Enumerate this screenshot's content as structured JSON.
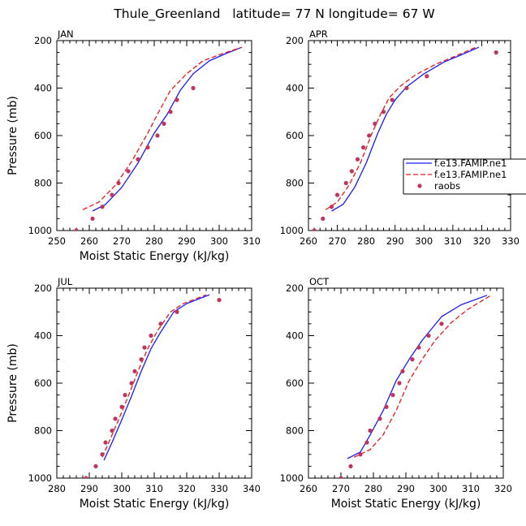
{
  "figure": {
    "title": "Thule_Greenland   latitude= 77 N longitude= 67 W"
  },
  "legend": {
    "placement": "right, between APR panel edge and figure edge",
    "entries": [
      {
        "label": "f.e13.FAMIP.ne1",
        "style": "solid",
        "color": "#1a1aff"
      },
      {
        "label": "f.e13.FAMIP.ne1",
        "style": "dashed",
        "color": "#e8191e"
      },
      {
        "label": "raobs",
        "style": "dots",
        "color": "#c0365a"
      }
    ]
  },
  "chart_data": [
    {
      "type": "line",
      "panel_label": "JAN",
      "xlabel": "Moist Static Energy (kJ/kg)",
      "ylabel": "Pressure (mb)",
      "xlim": [
        250,
        310
      ],
      "ylim": [
        200,
        1000
      ],
      "y_reversed": true,
      "xticks": [
        250,
        260,
        270,
        280,
        290,
        300,
        310
      ],
      "yticks": [
        200,
        400,
        600,
        800,
        1000
      ],
      "series": [
        {
          "style": "solid",
          "color": "#1a1aff",
          "points": [
            [
              261,
              918
            ],
            [
              265,
              890
            ],
            [
              270,
              818
            ],
            [
              275,
              716
            ],
            [
              280,
              590
            ],
            [
              284,
              510
            ],
            [
              288,
              410
            ],
            [
              292,
              340
            ],
            [
              297,
              285
            ],
            [
              302,
              255
            ],
            [
              307,
              228
            ]
          ]
        },
        {
          "style": "dashed",
          "color": "#e8191e",
          "points": [
            [
              258,
              912
            ],
            [
              263,
              880
            ],
            [
              268,
              810
            ],
            [
              273,
              710
            ],
            [
              278,
              590
            ],
            [
              281,
              510
            ],
            [
              285,
              410
            ],
            [
              290,
              340
            ],
            [
              295,
              285
            ],
            [
              301,
              255
            ],
            [
              307,
              228
            ]
          ]
        },
        {
          "style": "dots",
          "color": "#c0365a",
          "points": [
            [
              256,
              1000
            ],
            [
              261,
              950
            ],
            [
              264,
              900
            ],
            [
              267,
              850
            ],
            [
              269,
              800
            ],
            [
              272,
              750
            ],
            [
              275,
              700
            ],
            [
              278,
              650
            ],
            [
              281,
              600
            ],
            [
              283,
              550
            ],
            [
              285,
              500
            ],
            [
              287,
              450
            ],
            [
              292,
              400
            ]
          ]
        }
      ]
    },
    {
      "type": "line",
      "panel_label": "APR",
      "xlabel": "",
      "ylabel": "",
      "xlim": [
        260,
        330
      ],
      "ylim": [
        200,
        1000
      ],
      "y_reversed": true,
      "xticks": [
        260,
        270,
        280,
        290,
        300,
        310,
        320,
        330
      ],
      "yticks": [
        200,
        400,
        600,
        800,
        1000
      ],
      "series": [
        {
          "style": "solid",
          "color": "#1a1aff",
          "points": [
            [
              268,
              918
            ],
            [
              272,
              890
            ],
            [
              276,
              818
            ],
            [
              280,
              716
            ],
            [
              284,
              590
            ],
            [
              287,
              510
            ],
            [
              290,
              450
            ],
            [
              294,
              395
            ],
            [
              300,
              340
            ],
            [
              307,
              290
            ],
            [
              313,
              260
            ],
            [
              319,
              228
            ]
          ]
        },
        {
          "style": "dashed",
          "color": "#e8191e",
          "points": [
            [
              266,
              912
            ],
            [
              270,
              880
            ],
            [
              274,
              810
            ],
            [
              278,
              716
            ],
            [
              282,
              590
            ],
            [
              285,
              510
            ],
            [
              288,
              440
            ],
            [
              292,
              390
            ],
            [
              297,
              345
            ],
            [
              304,
              300
            ],
            [
              311,
              265
            ],
            [
              318,
              228
            ]
          ]
        },
        {
          "style": "dots",
          "color": "#c0365a",
          "points": [
            [
              262,
              1000
            ],
            [
              265,
              950
            ],
            [
              268,
              900
            ],
            [
              270,
              850
            ],
            [
              273,
              800
            ],
            [
              275,
              750
            ],
            [
              277,
              700
            ],
            [
              279,
              650
            ],
            [
              281,
              600
            ],
            [
              283,
              550
            ],
            [
              286,
              500
            ],
            [
              289,
              450
            ],
            [
              294,
              400
            ],
            [
              301,
              350
            ],
            [
              325,
              250
            ]
          ]
        }
      ]
    },
    {
      "type": "line",
      "panel_label": "JUL",
      "xlabel": "Moist Static Energy (kJ/kg)",
      "ylabel": "Pressure (mb)",
      "xlim": [
        280,
        340
      ],
      "ylim": [
        200,
        1000
      ],
      "y_reversed": true,
      "xticks": [
        280,
        290,
        300,
        310,
        320,
        330,
        340
      ],
      "yticks": [
        200,
        400,
        600,
        800,
        1000
      ],
      "series": [
        {
          "style": "solid",
          "color": "#1a1aff",
          "points": [
            [
              294.5,
              925
            ],
            [
              297,
              850
            ],
            [
              300,
              755
            ],
            [
              303,
              655
            ],
            [
              306,
              550
            ],
            [
              309,
              455
            ],
            [
              312,
              385
            ],
            [
              316,
              300
            ],
            [
              320,
              265
            ],
            [
              327,
              228
            ]
          ]
        },
        {
          "style": "dashed",
          "color": "#e8191e",
          "points": [
            [
              294,
              912
            ],
            [
              296,
              850
            ],
            [
              299,
              755
            ],
            [
              302,
              655
            ],
            [
              305,
              550
            ],
            [
              308,
              455
            ],
            [
              311,
              380
            ],
            [
              315,
              300
            ],
            [
              319,
              265
            ],
            [
              326,
              228
            ]
          ]
        },
        {
          "style": "dots",
          "color": "#c0365a",
          "points": [
            [
              289,
              1000
            ],
            [
              292,
              950
            ],
            [
              294,
              900
            ],
            [
              295,
              850
            ],
            [
              297,
              800
            ],
            [
              298,
              750
            ],
            [
              300,
              700
            ],
            [
              301,
              650
            ],
            [
              303,
              600
            ],
            [
              304,
              550
            ],
            [
              306,
              500
            ],
            [
              307,
              450
            ],
            [
              309,
              400
            ],
            [
              312,
              350
            ],
            [
              317,
              300
            ],
            [
              330,
              250
            ]
          ]
        }
      ]
    },
    {
      "type": "line",
      "panel_label": "OCT",
      "xlabel": "Moist Static Energy (kJ/kg)",
      "ylabel": "",
      "xlim": [
        260,
        320
      ],
      "ylim": [
        200,
        1000
      ],
      "y_reversed": true,
      "xticks": [
        260,
        270,
        280,
        290,
        300,
        310,
        320
      ],
      "yticks": [
        200,
        400,
        600,
        800,
        1000
      ],
      "series": [
        {
          "style": "solid",
          "color": "#1a1aff",
          "points": [
            [
              272,
              918
            ],
            [
              276,
              890
            ],
            [
              279,
              818
            ],
            [
              283,
              716
            ],
            [
              287,
              590
            ],
            [
              291,
              500
            ],
            [
              295,
              420
            ],
            [
              301,
              320
            ],
            [
              307,
              270
            ],
            [
              315,
              230
            ]
          ]
        },
        {
          "style": "dashed",
          "color": "#e8191e",
          "points": [
            [
              274,
              912
            ],
            [
              279,
              880
            ],
            [
              283,
              818
            ],
            [
              287,
              716
            ],
            [
              291,
              590
            ],
            [
              295,
              500
            ],
            [
              299,
              420
            ],
            [
              304,
              345
            ],
            [
              309,
              290
            ],
            [
              316,
              232
            ]
          ]
        },
        {
          "style": "dots",
          "color": "#c0365a",
          "points": [
            [
              270,
              1000
            ],
            [
              273,
              950
            ],
            [
              276,
              900
            ],
            [
              278,
              850
            ],
            [
              279,
              800
            ],
            [
              282,
              750
            ],
            [
              284,
              700
            ],
            [
              286,
              650
            ],
            [
              288,
              600
            ],
            [
              289,
              550
            ],
            [
              292,
              500
            ],
            [
              294,
              450
            ],
            [
              297,
              400
            ],
            [
              301,
              350
            ]
          ]
        }
      ]
    }
  ]
}
